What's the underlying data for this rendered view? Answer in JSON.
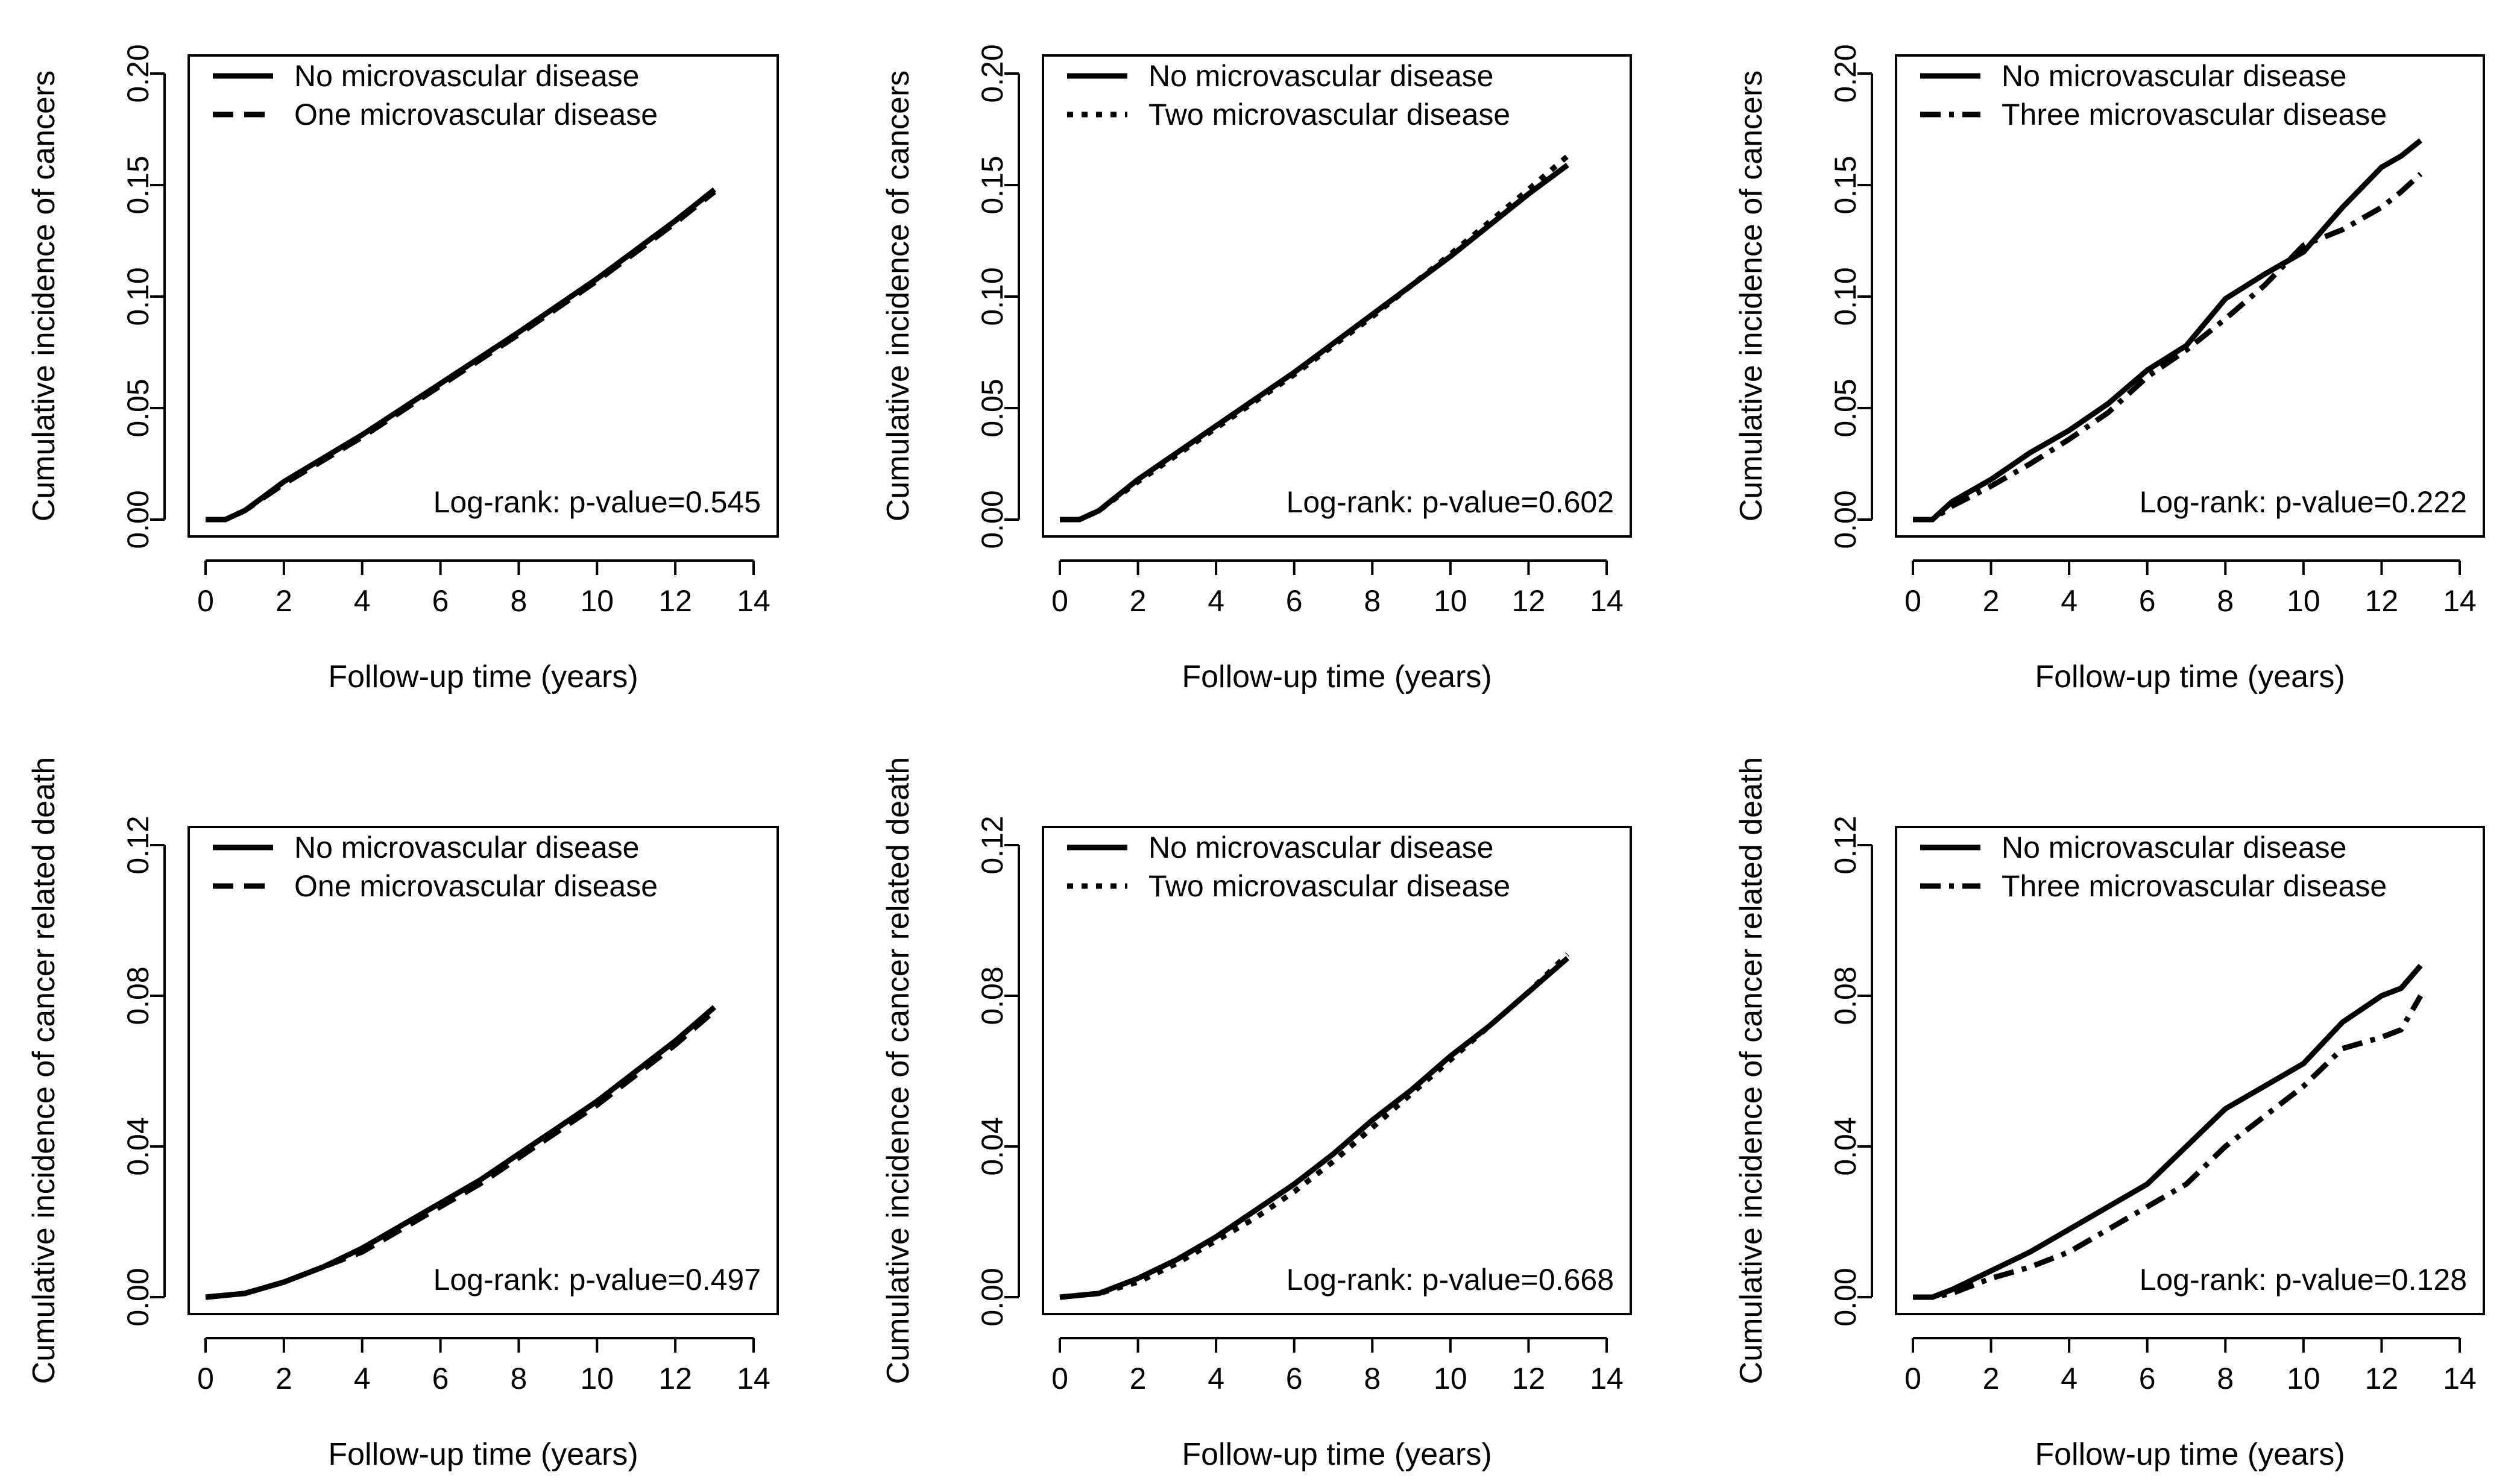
{
  "chart_data": [
    {
      "type": "line",
      "panel": "cancer-incidence-one",
      "title": "",
      "xlabel": "Follow-up time (years)",
      "ylabel": "Cumulative incidence of cancers",
      "xlim": [
        0,
        14
      ],
      "ylim": [
        0,
        0.2
      ],
      "xticks": [
        "0",
        "2",
        "4",
        "6",
        "8",
        "10",
        "12",
        "14"
      ],
      "yticks": [
        "0.00",
        "0.05",
        "0.10",
        "0.15",
        "0.20"
      ],
      "legend": [
        "No microvascular disease",
        "One microvascular disease"
      ],
      "legend_position": "top-left",
      "annotation": "Log-rank: p-value=0.545",
      "series": [
        {
          "name": "No microvascular disease",
          "style": "solid",
          "x": [
            0,
            0.5,
            1,
            2,
            4,
            6,
            8,
            10,
            12,
            13
          ],
          "y": [
            0,
            0,
            0.004,
            0.017,
            0.038,
            0.061,
            0.084,
            0.108,
            0.134,
            0.148
          ]
        },
        {
          "name": "One microvascular disease",
          "style": "dashed",
          "x": [
            0,
            0.5,
            1,
            2,
            4,
            6,
            8,
            10,
            12,
            13
          ],
          "y": [
            0,
            0,
            0.004,
            0.016,
            0.037,
            0.06,
            0.083,
            0.107,
            0.133,
            0.147
          ]
        }
      ]
    },
    {
      "type": "line",
      "panel": "cancer-incidence-two",
      "title": "",
      "xlabel": "Follow-up time (years)",
      "ylabel": "Cumulative incidence of cancers",
      "xlim": [
        0,
        14
      ],
      "ylim": [
        0,
        0.2
      ],
      "xticks": [
        "0",
        "2",
        "4",
        "6",
        "8",
        "10",
        "12",
        "14"
      ],
      "yticks": [
        "0.00",
        "0.05",
        "0.10",
        "0.15",
        "0.20"
      ],
      "legend": [
        "No microvascular disease",
        "Two microvascular disease"
      ],
      "legend_position": "top-left",
      "annotation": "Log-rank: p-value=0.602",
      "series": [
        {
          "name": "No microvascular disease",
          "style": "solid",
          "x": [
            0,
            0.5,
            1,
            2,
            4,
            6,
            8,
            10,
            12,
            13
          ],
          "y": [
            0,
            0,
            0.004,
            0.018,
            0.042,
            0.066,
            0.092,
            0.118,
            0.146,
            0.159
          ]
        },
        {
          "name": "Two microvascular disease",
          "style": "dotted",
          "x": [
            0,
            0.5,
            1,
            2,
            4,
            6,
            8,
            10,
            12,
            13
          ],
          "y": [
            0,
            0,
            0.004,
            0.017,
            0.041,
            0.065,
            0.091,
            0.119,
            0.148,
            0.163
          ]
        }
      ]
    },
    {
      "type": "line",
      "panel": "cancer-incidence-three",
      "title": "",
      "xlabel": "Follow-up time (years)",
      "ylabel": "Cumulative incidence of cancers",
      "xlim": [
        0,
        14
      ],
      "ylim": [
        0,
        0.2
      ],
      "xticks": [
        "0",
        "2",
        "4",
        "6",
        "8",
        "10",
        "12",
        "14"
      ],
      "yticks": [
        "0.00",
        "0.05",
        "0.10",
        "0.15",
        "0.20"
      ],
      "legend": [
        "No microvascular disease",
        "Three microvascular disease"
      ],
      "legend_position": "top-left",
      "annotation": "Log-rank: p-value=0.222",
      "series": [
        {
          "name": "No microvascular disease",
          "style": "solid",
          "x": [
            0,
            0.5,
            1,
            2,
            3,
            4,
            5,
            6,
            7,
            8,
            9,
            10,
            11,
            12,
            12.5,
            13
          ],
          "y": [
            0,
            0,
            0.008,
            0.018,
            0.03,
            0.04,
            0.052,
            0.067,
            0.078,
            0.099,
            0.11,
            0.12,
            0.14,
            0.158,
            0.163,
            0.17
          ]
        },
        {
          "name": "Three microvascular disease",
          "style": "dashdot",
          "x": [
            0,
            0.5,
            1,
            2,
            3,
            4,
            5,
            6,
            7,
            8,
            9,
            10,
            11,
            12,
            12.5,
            13
          ],
          "y": [
            0,
            0,
            0.006,
            0.015,
            0.025,
            0.036,
            0.048,
            0.064,
            0.076,
            0.09,
            0.105,
            0.123,
            0.13,
            0.14,
            0.147,
            0.155
          ]
        }
      ]
    },
    {
      "type": "line",
      "panel": "cancer-death-one",
      "title": "",
      "xlabel": "Follow-up time (years)",
      "ylabel": "Cumulative incidence of cancer related death",
      "xlim": [
        0,
        14
      ],
      "ylim": [
        0,
        0.12
      ],
      "xticks": [
        "0",
        "2",
        "4",
        "6",
        "8",
        "10",
        "12",
        "14"
      ],
      "yticks": [
        "0.00",
        "0.04",
        "0.08",
        "0.12"
      ],
      "legend": [
        "No microvascular disease",
        "One microvascular disease"
      ],
      "legend_position": "top-left",
      "annotation": "Log-rank: p-value=0.497",
      "series": [
        {
          "name": "No microvascular disease",
          "style": "solid",
          "x": [
            0,
            1,
            2,
            3,
            4,
            5,
            6,
            7,
            8,
            9,
            10,
            11,
            12,
            13
          ],
          "y": [
            0,
            0.001,
            0.004,
            0.008,
            0.013,
            0.019,
            0.025,
            0.031,
            0.038,
            0.045,
            0.052,
            0.06,
            0.068,
            0.077
          ]
        },
        {
          "name": "One microvascular disease",
          "style": "dashed",
          "x": [
            0,
            1,
            2,
            3,
            4,
            5,
            6,
            7,
            8,
            9,
            10,
            11,
            12,
            13
          ],
          "y": [
            0,
            0.001,
            0.004,
            0.008,
            0.012,
            0.018,
            0.024,
            0.03,
            0.037,
            0.044,
            0.051,
            0.059,
            0.067,
            0.076
          ]
        }
      ]
    },
    {
      "type": "line",
      "panel": "cancer-death-two",
      "title": "",
      "xlabel": "Follow-up time (years)",
      "ylabel": "Cumulative incidence of cancer related death",
      "xlim": [
        0,
        14
      ],
      "ylim": [
        0,
        0.12
      ],
      "xticks": [
        "0",
        "2",
        "4",
        "6",
        "8",
        "10",
        "12",
        "14"
      ],
      "yticks": [
        "0.00",
        "0.04",
        "0.08",
        "0.12"
      ],
      "legend": [
        "No microvascular disease",
        "Two microvascular disease"
      ],
      "legend_position": "top-left",
      "annotation": "Log-rank: p-value=0.668",
      "series": [
        {
          "name": "No microvascular disease",
          "style": "solid",
          "x": [
            0,
            1,
            2,
            3,
            4,
            5,
            6,
            7,
            8,
            9,
            10,
            11,
            12,
            13
          ],
          "y": [
            0,
            0.001,
            0.005,
            0.01,
            0.016,
            0.023,
            0.03,
            0.038,
            0.047,
            0.055,
            0.064,
            0.072,
            0.081,
            0.09
          ]
        },
        {
          "name": "Two microvascular disease",
          "style": "dotted",
          "x": [
            0,
            1,
            2,
            3,
            4,
            5,
            6,
            7,
            8,
            9,
            10,
            11,
            12,
            13
          ],
          "y": [
            0,
            0.001,
            0.004,
            0.009,
            0.015,
            0.021,
            0.028,
            0.036,
            0.045,
            0.054,
            0.063,
            0.072,
            0.081,
            0.091
          ]
        }
      ]
    },
    {
      "type": "line",
      "panel": "cancer-death-three",
      "title": "",
      "xlabel": "Follow-up time (years)",
      "ylabel": "Cumulative incidence of cancer related death",
      "xlim": [
        0,
        14
      ],
      "ylim": [
        0,
        0.12
      ],
      "xticks": [
        "0",
        "2",
        "4",
        "6",
        "8",
        "10",
        "12",
        "14"
      ],
      "yticks": [
        "0.00",
        "0.04",
        "0.08",
        "0.12"
      ],
      "legend": [
        "No microvascular disease",
        "Three microvascular disease"
      ],
      "legend_position": "top-left",
      "annotation": "Log-rank: p-value=0.128",
      "series": [
        {
          "name": "No microvascular disease",
          "style": "solid",
          "x": [
            0,
            0.5,
            1,
            2,
            3,
            4,
            5,
            6,
            7,
            8,
            9,
            10,
            11,
            12,
            12.5,
            13
          ],
          "y": [
            0,
            0,
            0.002,
            0.007,
            0.012,
            0.018,
            0.024,
            0.03,
            0.04,
            0.05,
            0.056,
            0.062,
            0.073,
            0.08,
            0.082,
            0.088
          ]
        },
        {
          "name": "Three microvascular disease",
          "style": "dashdot",
          "x": [
            0,
            0.5,
            1,
            2,
            3,
            4,
            5,
            6,
            7,
            8,
            9,
            10,
            11,
            12,
            12.5,
            13
          ],
          "y": [
            0,
            0,
            0.001,
            0.005,
            0.008,
            0.012,
            0.018,
            0.024,
            0.03,
            0.04,
            0.048,
            0.056,
            0.066,
            0.069,
            0.071,
            0.08
          ]
        }
      ]
    }
  ]
}
